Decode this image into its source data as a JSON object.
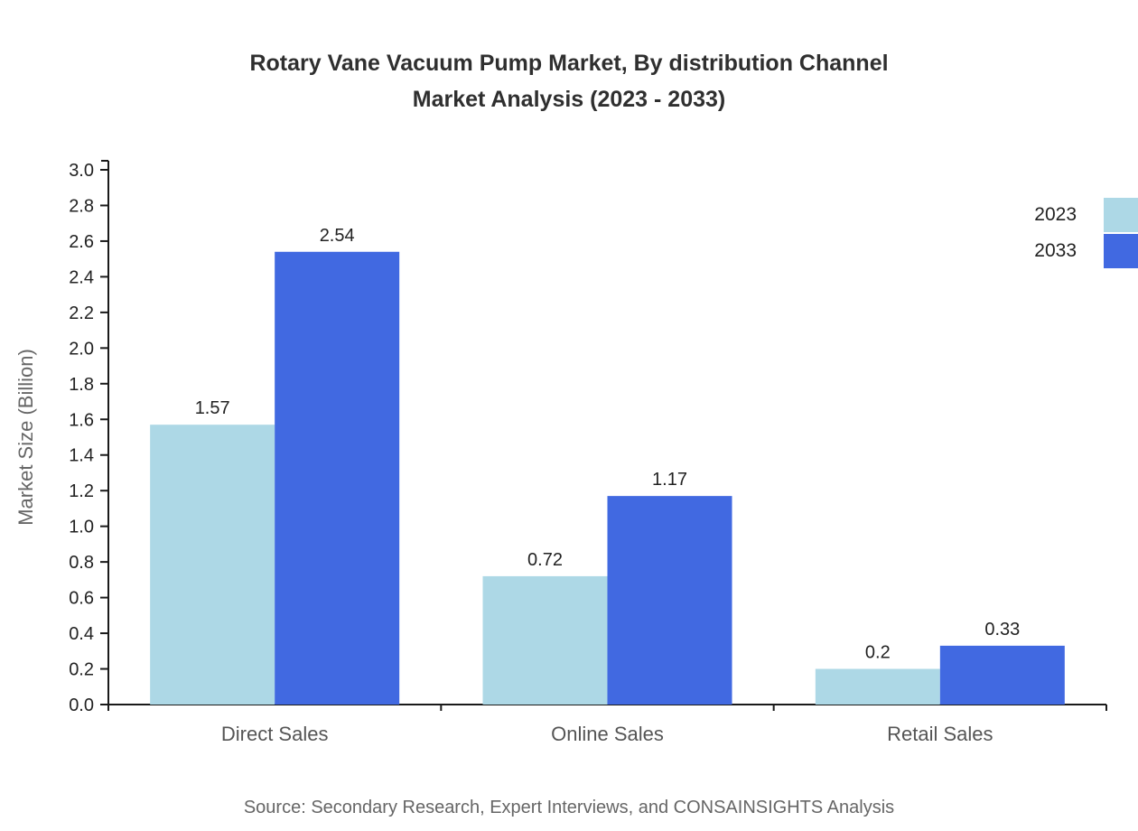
{
  "page": {
    "title_line1": "Rotary Vane Vacuum Pump Market, By distribution Channel",
    "title_line2": "Market Analysis (2023 - 2033)",
    "source": "Source: Secondary Research, Expert Interviews, and CONSAINSIGHTS Analysis"
  },
  "chart_data": {
    "type": "bar",
    "title": "Rotary Vane Vacuum Pump Market, By distribution Channel Market Analysis (2023 - 2033)",
    "categories": [
      "Direct Sales",
      "Online Sales",
      "Retail Sales"
    ],
    "series": [
      {
        "name": "2023",
        "color": "#add8e6",
        "values": [
          1.57,
          0.72,
          0.2
        ]
      },
      {
        "name": "2033",
        "color": "#4169e1",
        "values": [
          2.54,
          1.17,
          0.33
        ]
      }
    ],
    "xlabel": "",
    "ylabel": "Market Size (Billion)",
    "ylim": [
      0,
      3.0
    ],
    "ytick_step": 0.2,
    "grid": false,
    "legend_position": "top-right",
    "axis_color": "#1a1a1a"
  }
}
